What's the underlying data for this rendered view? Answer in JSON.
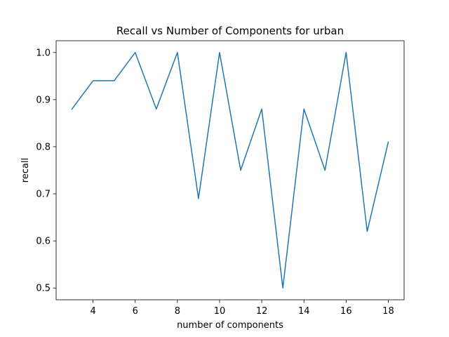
{
  "chart_data": {
    "type": "line",
    "title": "Recall vs Number of Components for urban",
    "xlabel": "number of components",
    "ylabel": "recall",
    "x": [
      3,
      4,
      5,
      6,
      7,
      8,
      9,
      10,
      11,
      12,
      13,
      14,
      15,
      16,
      17,
      18
    ],
    "series": [
      {
        "values": [
          0.88,
          0.94,
          0.94,
          1.0,
          0.88,
          1.0,
          0.69,
          1.0,
          0.75,
          0.88,
          0.5,
          0.88,
          0.75,
          1.0,
          0.62,
          0.81
        ],
        "color": "#1f77b4"
      }
    ],
    "xlim": [
      2.25,
      18.75
    ],
    "ylim": [
      0.475,
      1.025
    ],
    "xticks": [
      4,
      6,
      8,
      10,
      12,
      14,
      16,
      18
    ],
    "xtick_labels": [
      "4",
      "6",
      "8",
      "10",
      "12",
      "14",
      "16",
      "18"
    ],
    "yticks": [
      0.5,
      0.6,
      0.7,
      0.8,
      0.9,
      1.0
    ],
    "ytick_labels": [
      "0.5",
      "0.6",
      "0.7",
      "0.8",
      "0.9",
      "1.0"
    ],
    "grid": false,
    "legend": "none"
  }
}
